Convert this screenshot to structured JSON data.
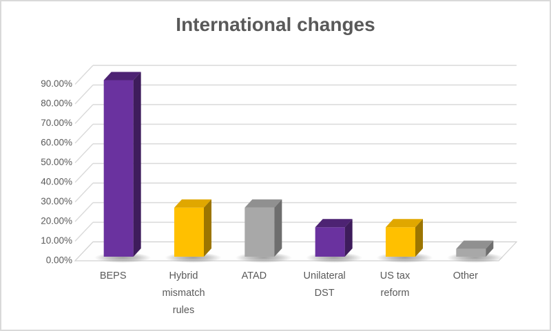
{
  "chart_data": {
    "type": "bar",
    "projection": "3d-column",
    "title": "International changes",
    "categories": [
      "BEPS",
      "Hybrid mismatch rules",
      "ATAD",
      "Unilateral DST",
      "US tax reform",
      "Other"
    ],
    "category_label_lines": [
      [
        "BEPS"
      ],
      [
        "Hybrid",
        "mismatch",
        "rules"
      ],
      [
        "ATAD"
      ],
      [
        "Unilateral",
        "DST"
      ],
      [
        "US tax",
        "reform"
      ],
      [
        "Other"
      ]
    ],
    "values_pct": [
      90,
      25,
      25,
      15,
      15,
      4
    ],
    "value_suffix": "%",
    "ylim": [
      0,
      90
    ],
    "ytick_step": 10,
    "ytick_labels": [
      "0.00%",
      "10.00%",
      "20.00%",
      "30.00%",
      "40.00%",
      "50.00%",
      "60.00%",
      "70.00%",
      "80.00%",
      "90.00%"
    ],
    "grid": true,
    "legend": false,
    "bar_color_keys": [
      "purple",
      "gold",
      "gray",
      "purple",
      "gold",
      "gray"
    ]
  },
  "colors": {
    "purple": {
      "front": "#6A329F",
      "top": "#4D2373",
      "side": "#3E1C5C"
    },
    "gold": {
      "front": "#FFC000",
      "top": "#E0A700",
      "side": "#9C7500"
    },
    "gray": {
      "front": "#A8A8A8",
      "top": "#909090",
      "side": "#6E6E6E"
    },
    "title_text": "#595959",
    "axis_text": "#595959",
    "gridline": "#D9D9D9",
    "floor_edge": "#D2D2D2",
    "floor_fill": "#FEFEFE",
    "frame_border": "#D9D9D9",
    "background": "#FFFFFF"
  }
}
